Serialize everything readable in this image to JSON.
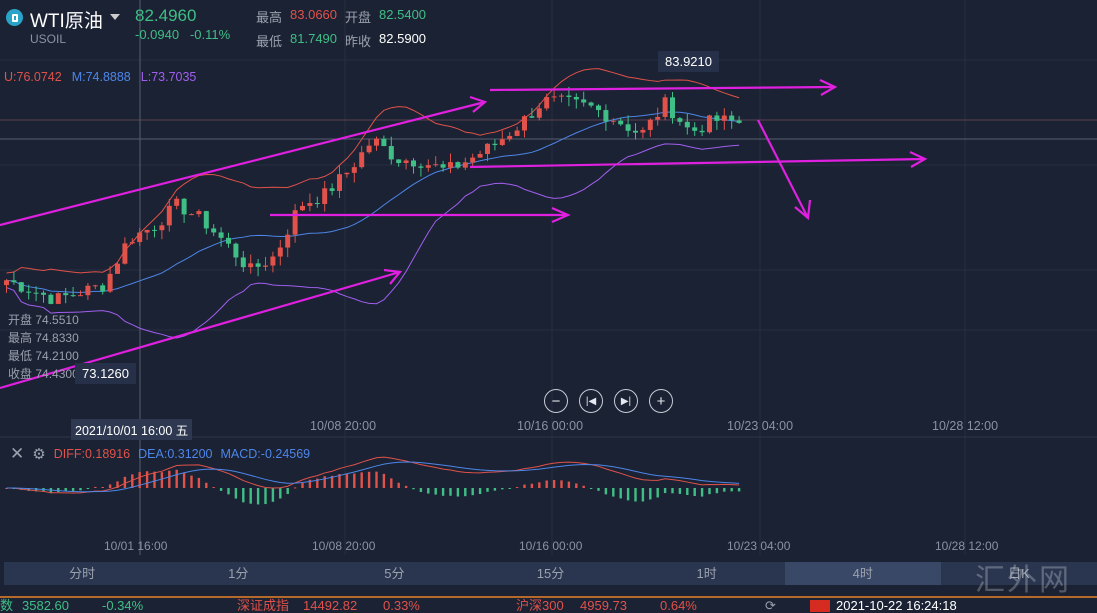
{
  "header": {
    "title": "WTI原油",
    "symbol": "USOIL",
    "price": "82.4960",
    "change": "-0.0940",
    "change_pct": "-0.11%",
    "high_label": "最高",
    "high": "83.0660",
    "open_label": "开盘",
    "open": "82.5400",
    "low_label": "最低",
    "low": "81.7490",
    "prev_close_label": "昨收",
    "prev_close": "82.5900"
  },
  "bollinger": {
    "upper": "U:76.0742",
    "mid": "M:74.8888",
    "lower": "L:73.7035"
  },
  "cursor_ohlc": [
    {
      "label": "开盘",
      "value": "74.5510"
    },
    {
      "label": "最高",
      "value": "74.8330"
    },
    {
      "label": "最低",
      "value": "74.2100"
    },
    {
      "label": "收盘",
      "value": "74.4300"
    }
  ],
  "low_marker": "73.1260",
  "high_marker": "83.9210",
  "crosshair_time": "2021/10/01 16:00 五",
  "time_axis": [
    "10/08 20:00",
    "10/16 00:00",
    "10/23 04:00",
    "10/28 12:00"
  ],
  "time_axis_bottom": [
    "10/01 16:00",
    "10/08 20:00",
    "10/16 00:00",
    "10/23 04:00",
    "10/28 12:00"
  ],
  "macd": {
    "diff": "DIFF:0.18916",
    "dea": "DEA:0.31200",
    "macd": "MACD:-0.24569"
  },
  "controls": [
    "zoom-out",
    "skip-back",
    "skip-forward",
    "zoom-in"
  ],
  "tabs": [
    {
      "label": "分时"
    },
    {
      "label": "1分"
    },
    {
      "label": "5分"
    },
    {
      "label": "15分"
    },
    {
      "label": "1时"
    },
    {
      "label": "4时",
      "active": true
    },
    {
      "label": "日K"
    }
  ],
  "watermark": "汇外网",
  "ticker": {
    "i1_name": "数",
    "i1_val": "3582.60",
    "i1_pct": "-0.34%",
    "i2_name": "深证成指",
    "i2_val": "14492.82",
    "i2_pct": "0.33%",
    "i3_name": "沪深300",
    "i3_val": "4959.73",
    "i3_pct": "0.64%",
    "datetime": "2021-10-22 16:24:18"
  },
  "colors": {
    "up": "#e0524a",
    "down": "#3fbf86",
    "upper": "#e0524a",
    "mid": "#4d86e8",
    "lower": "#a15ff0",
    "annot": "#e020e0"
  },
  "price_keypoints": [
    76.0,
    75.6,
    75.2,
    75.5,
    75.8,
    77.7,
    78.2,
    79.1,
    78.5,
    77.5,
    76.4,
    77.0,
    79.1,
    79.5,
    80.5,
    81.8,
    81.0,
    80.9,
    80.5,
    81.0,
    81.6,
    82.4,
    83.4,
    83.3,
    83.1,
    82.6,
    82.0,
    83.3,
    82.1,
    82.6,
    82.5
  ]
}
